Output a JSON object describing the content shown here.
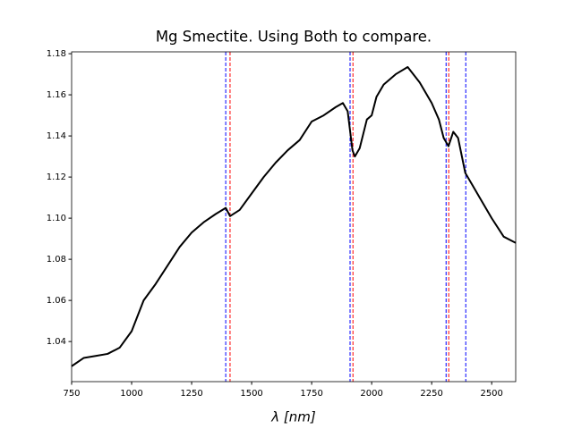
{
  "chart_data": {
    "type": "line",
    "title": "Mg Smectite. Using Both to compare.",
    "x_label": "λ [nm]",
    "x": [
      750,
      800,
      850,
      900,
      950,
      1000,
      1050,
      1100,
      1150,
      1200,
      1250,
      1300,
      1350,
      1392,
      1410,
      1450,
      1500,
      1550,
      1600,
      1650,
      1700,
      1750,
      1800,
      1850,
      1880,
      1900,
      1920,
      1930,
      1950,
      1980,
      2000,
      2020,
      2050,
      2100,
      2150,
      2200,
      2250,
      2280,
      2300,
      2320,
      2340,
      2360,
      2390,
      2420,
      2450,
      2500,
      2550,
      2600
    ],
    "values": [
      1.028,
      1.032,
      1.033,
      1.034,
      1.037,
      1.045,
      1.06,
      1.068,
      1.077,
      1.086,
      1.093,
      1.098,
      1.102,
      1.105,
      1.101,
      1.104,
      1.112,
      1.12,
      1.127,
      1.133,
      1.138,
      1.147,
      1.15,
      1.154,
      1.156,
      1.152,
      1.133,
      1.13,
      1.134,
      1.148,
      1.15,
      1.159,
      1.165,
      1.17,
      1.1735,
      1.166,
      1.156,
      1.148,
      1.139,
      1.135,
      1.142,
      1.139,
      1.122,
      1.116,
      1.11,
      1.1,
      1.091,
      1.088
    ],
    "color": "#000000",
    "vlines": [
      {
        "color": "#0000ff",
        "x": [
          1392,
          1910,
          2310,
          2392
        ]
      },
      {
        "color": "#ff0000",
        "x": [
          1410,
          1922,
          2321
        ]
      }
    ],
    "xlim": [
      750,
      2600
    ],
    "ylim": [
      1.0205,
      1.1809
    ],
    "xticks": [
      750,
      1000,
      1250,
      1500,
      1750,
      2000,
      2250,
      2500
    ],
    "yticks": [
      1.04,
      1.06,
      1.08,
      {
        "value": 1.1,
        "label": "1.10"
      },
      1.12,
      1.14,
      1.16,
      1.18
    ]
  }
}
